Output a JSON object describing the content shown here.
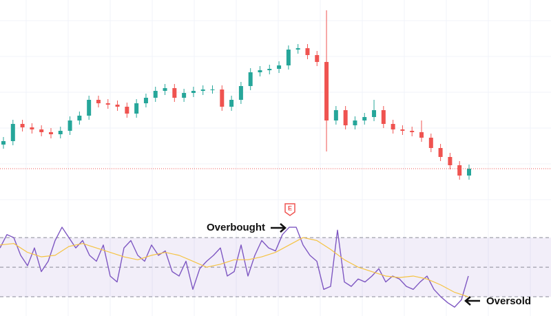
{
  "chart_data": [
    {
      "type": "candlestick",
      "ylim": [
        0,
        300
      ],
      "grid": true,
      "up_color": "#26a69a",
      "down_color": "#ef5350",
      "last_price_color": "#ef5350",
      "open": [
        90,
        95,
        120,
        115,
        112,
        108,
        105,
        110,
        125,
        132,
        155,
        150,
        148,
        145,
        135,
        150,
        158,
        168,
        172,
        158,
        165,
        168,
        170,
        170,
        145,
        155,
        175,
        195,
        198,
        200,
        205,
        228,
        230,
        220,
        210,
        125,
        140,
        118,
        125,
        130,
        140,
        120,
        112,
        110,
        108,
        100,
        85,
        72,
        60,
        45
      ],
      "high": [
        101,
        126,
        126,
        121,
        118,
        114,
        116,
        131,
        138,
        161,
        161,
        156,
        154,
        151,
        156,
        164,
        174,
        178,
        178,
        171,
        174,
        176,
        176,
        176,
        161,
        181,
        201,
        204,
        206,
        211,
        234,
        236,
        236,
        226,
        285,
        146,
        146,
        131,
        136,
        155,
        146,
        126,
        118,
        116,
        125,
        106,
        91,
        78,
        66,
        61
      ],
      "low": [
        84,
        89,
        109,
        106,
        102,
        99,
        99,
        104,
        119,
        126,
        144,
        142,
        139,
        129,
        129,
        144,
        152,
        162,
        152,
        152,
        159,
        162,
        164,
        139,
        139,
        149,
        169,
        189,
        192,
        194,
        199,
        222,
        214,
        204,
        80,
        119,
        112,
        112,
        119,
        124,
        114,
        106,
        104,
        102,
        94,
        79,
        66,
        54,
        39,
        39
      ],
      "close": [
        95,
        120,
        115,
        112,
        108,
        105,
        110,
        125,
        132,
        155,
        150,
        148,
        145,
        135,
        150,
        158,
        168,
        172,
        158,
        165,
        168,
        170,
        170,
        145,
        155,
        175,
        195,
        198,
        200,
        205,
        228,
        230,
        220,
        210,
        125,
        140,
        118,
        125,
        130,
        140,
        120,
        112,
        110,
        108,
        100,
        85,
        72,
        60,
        45,
        55
      ]
    },
    {
      "type": "line",
      "ylim": [
        17,
        84
      ],
      "bands": [
        70,
        50,
        30
      ],
      "band_color": "#7e57c2",
      "annotations": [
        {
          "text": "Overbought"
        },
        {
          "text": "Oversold"
        },
        {
          "text": "E"
        }
      ],
      "series": [
        {
          "color": "#7e57c2",
          "values": [
            63,
            72,
            70,
            58,
            51,
            63,
            47,
            54,
            68,
            77,
            70,
            63,
            68,
            58,
            54,
            65,
            44,
            40,
            63,
            68,
            58,
            54,
            65,
            58,
            61,
            47,
            44,
            54,
            35,
            49,
            54,
            58,
            63,
            44,
            47,
            65,
            44,
            58,
            68,
            63,
            61,
            72,
            77,
            77,
            65,
            58,
            54,
            35,
            37,
            75,
            40,
            37,
            42,
            40,
            44,
            49,
            40,
            44,
            42,
            37,
            35,
            40,
            44,
            35,
            30,
            26,
            23,
            28,
            44
          ]
        },
        {
          "color": "#f5c342",
          "values": [
            65,
            66,
            60,
            57,
            58,
            64,
            66,
            63,
            60,
            57,
            55,
            58,
            60,
            58,
            54,
            50,
            52,
            55,
            55,
            57,
            60,
            65,
            70,
            68,
            62,
            55,
            50,
            47,
            44,
            43,
            44,
            42,
            38,
            33,
            30
          ]
        }
      ]
    }
  ]
}
